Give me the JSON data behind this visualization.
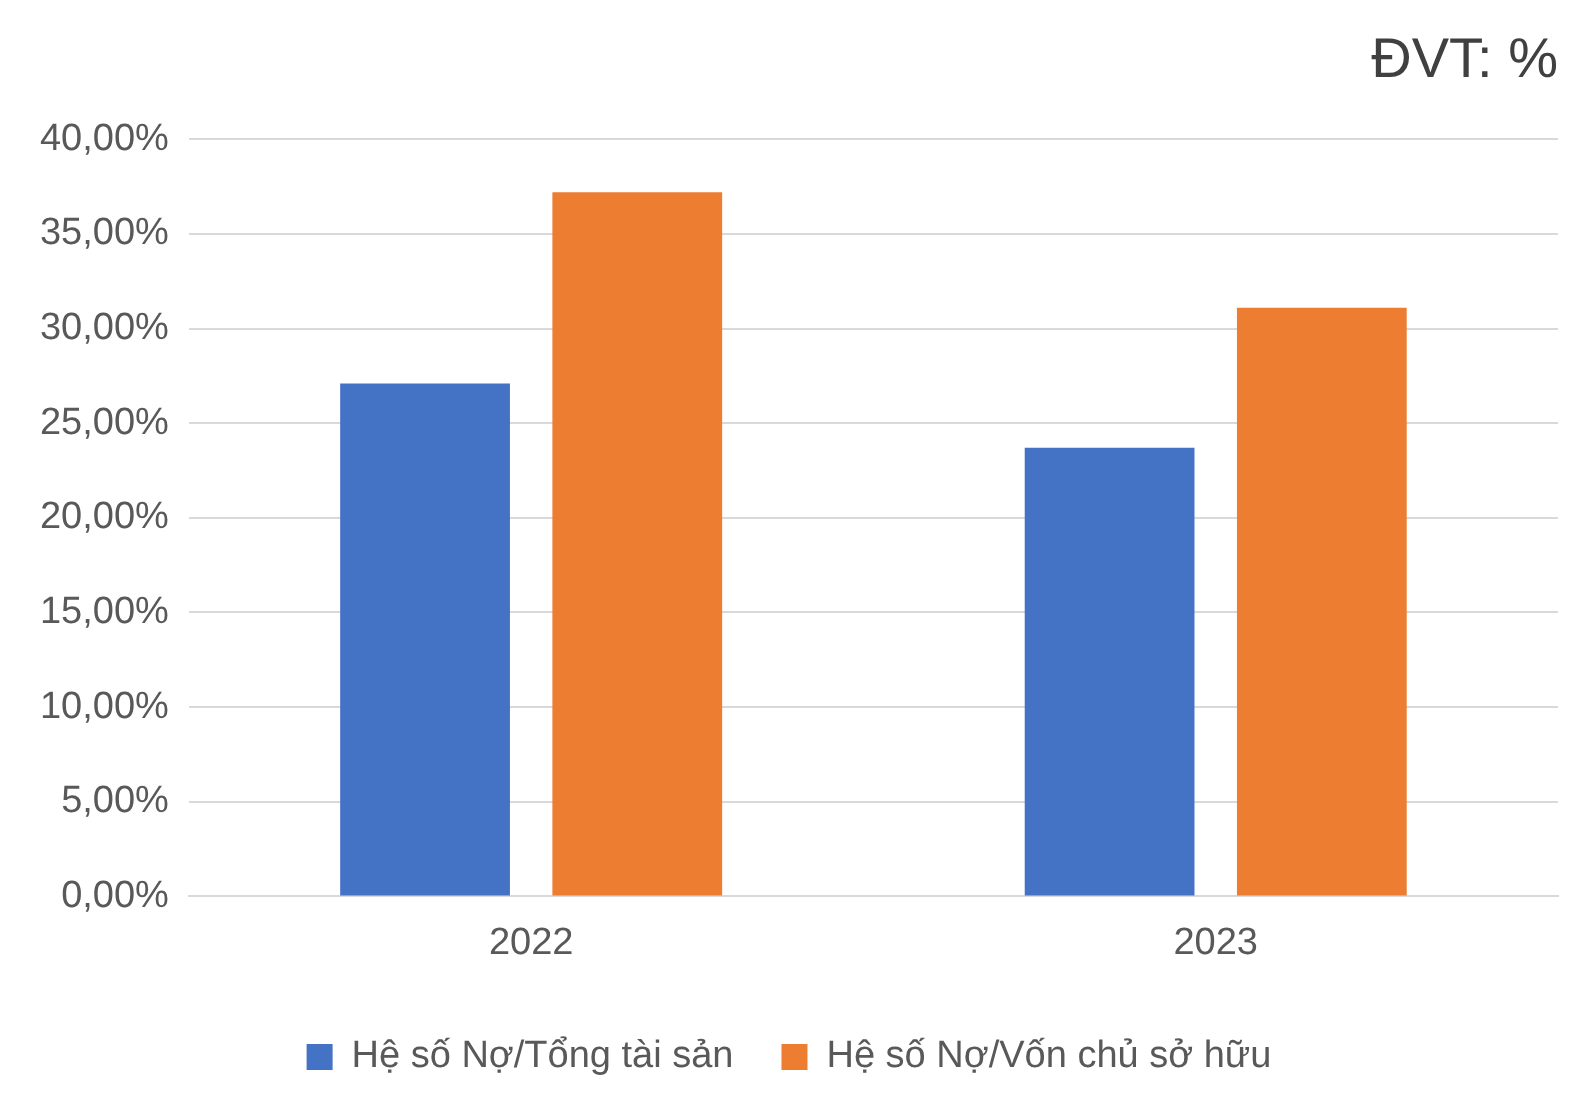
{
  "chart_data": {
    "type": "bar",
    "title": "ĐVT: %",
    "categories": [
      "2022",
      "2023"
    ],
    "series": [
      {
        "name": "Hệ số Nợ/Tổng tài sản",
        "color": "#4472c4",
        "values": [
          27.1,
          23.7
        ]
      },
      {
        "name": "Hệ số Nợ/Vốn chủ sở hữu",
        "color": "#ed7d31",
        "values": [
          37.2,
          31.1
        ]
      }
    ],
    "ylim": [
      0,
      40
    ],
    "yticks": [
      {
        "value": 0,
        "label": "0,00%"
      },
      {
        "value": 5,
        "label": "5,00%"
      },
      {
        "value": 10,
        "label": "10,00%"
      },
      {
        "value": 15,
        "label": "15,00%"
      },
      {
        "value": 20,
        "label": "20,00%"
      },
      {
        "value": 25,
        "label": "25,00%"
      },
      {
        "value": 30,
        "label": "30,00%"
      },
      {
        "value": 35,
        "label": "35,00%"
      },
      {
        "value": 40,
        "label": "40,00%"
      }
    ],
    "grid": "y",
    "legend": "bottom"
  }
}
